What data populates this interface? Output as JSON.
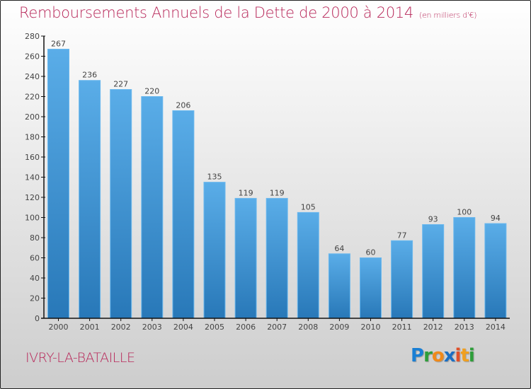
{
  "header": {
    "title": "Remboursements Annuels de la Dette de 2000 à 2014",
    "unit": "(en milliers d'€)"
  },
  "footer": {
    "city": "IVRY-LA-BATAILLE",
    "logo_letters": [
      {
        "char": "P",
        "color": "#1a7fd4"
      },
      {
        "char": "r",
        "color": "#2e9e3a"
      },
      {
        "char": "o",
        "color": "#f08a1a"
      },
      {
        "char": "x",
        "color": "#1a6fc4"
      },
      {
        "char": "i",
        "color": "#e0502a"
      },
      {
        "char": "t",
        "color": "#f0a020"
      },
      {
        "char": "i",
        "color": "#2e9e3a"
      }
    ]
  },
  "colors": {
    "title": "#b8285a",
    "bar_top": "#5aade8",
    "bar_bottom": "#2878b8",
    "axis": "#111111"
  },
  "chart_data": {
    "type": "bar",
    "title": "Remboursements Annuels de la Dette de 2000 à 2014",
    "subtitle": "(en milliers d'€)",
    "xlabel": "",
    "ylabel": "",
    "categories": [
      "2000",
      "2001",
      "2002",
      "2003",
      "2004",
      "2005",
      "2006",
      "2007",
      "2008",
      "2009",
      "2010",
      "2011",
      "2012",
      "2013",
      "2014"
    ],
    "values": [
      267,
      236,
      227,
      220,
      206,
      135,
      119,
      119,
      105,
      64,
      60,
      77,
      93,
      100,
      94
    ],
    "ylim": [
      0,
      280
    ],
    "yticks": [
      0,
      20,
      40,
      60,
      80,
      100,
      120,
      140,
      160,
      180,
      200,
      220,
      240,
      260,
      280
    ],
    "grid": false,
    "legend": "none",
    "data_labels": true
  }
}
